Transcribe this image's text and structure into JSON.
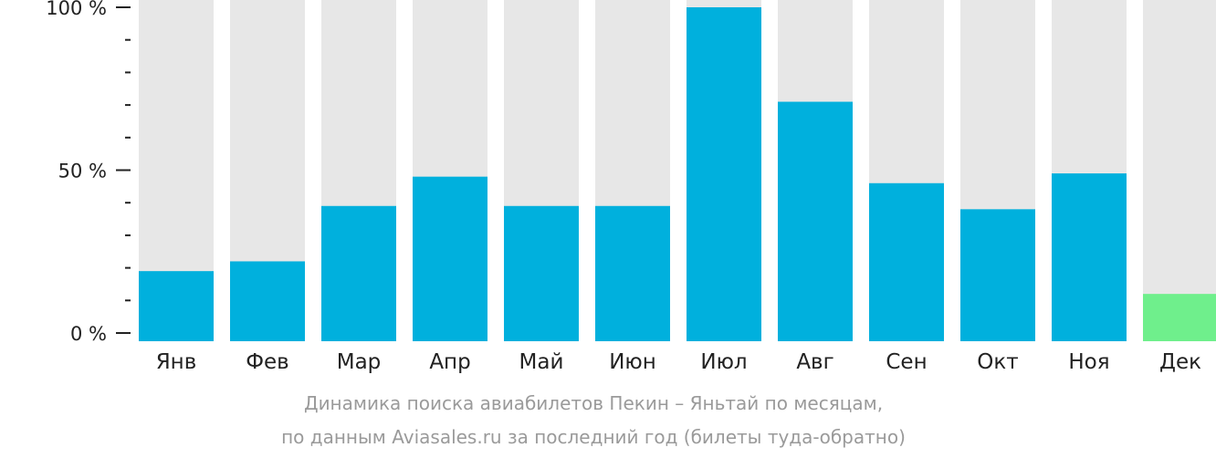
{
  "chart_data": {
    "type": "bar",
    "categories": [
      "Янв",
      "Фев",
      "Мар",
      "Апр",
      "Май",
      "Июн",
      "Июл",
      "Авг",
      "Сен",
      "Окт",
      "Ноя",
      "Дек"
    ],
    "values": [
      19,
      22,
      39,
      48,
      39,
      39,
      100,
      71,
      46,
      38,
      49,
      12
    ],
    "highlight_index": 11,
    "ylim": [
      0,
      100
    ],
    "yticks": [
      0,
      50,
      100
    ],
    "ytick_labels": [
      "0 %",
      "50 %",
      "100 %"
    ],
    "colors": {
      "bar": "#00b0dd",
      "highlight": "#6fef8c",
      "background_bar": "#e7e7e7",
      "axis": "#222222"
    }
  },
  "caption": {
    "line1": "Динамика поиска авиабилетов Пекин – Яньтай по месяцам,",
    "line2": "по данным Aviasales.ru за последний год (билеты туда-обратно)"
  }
}
